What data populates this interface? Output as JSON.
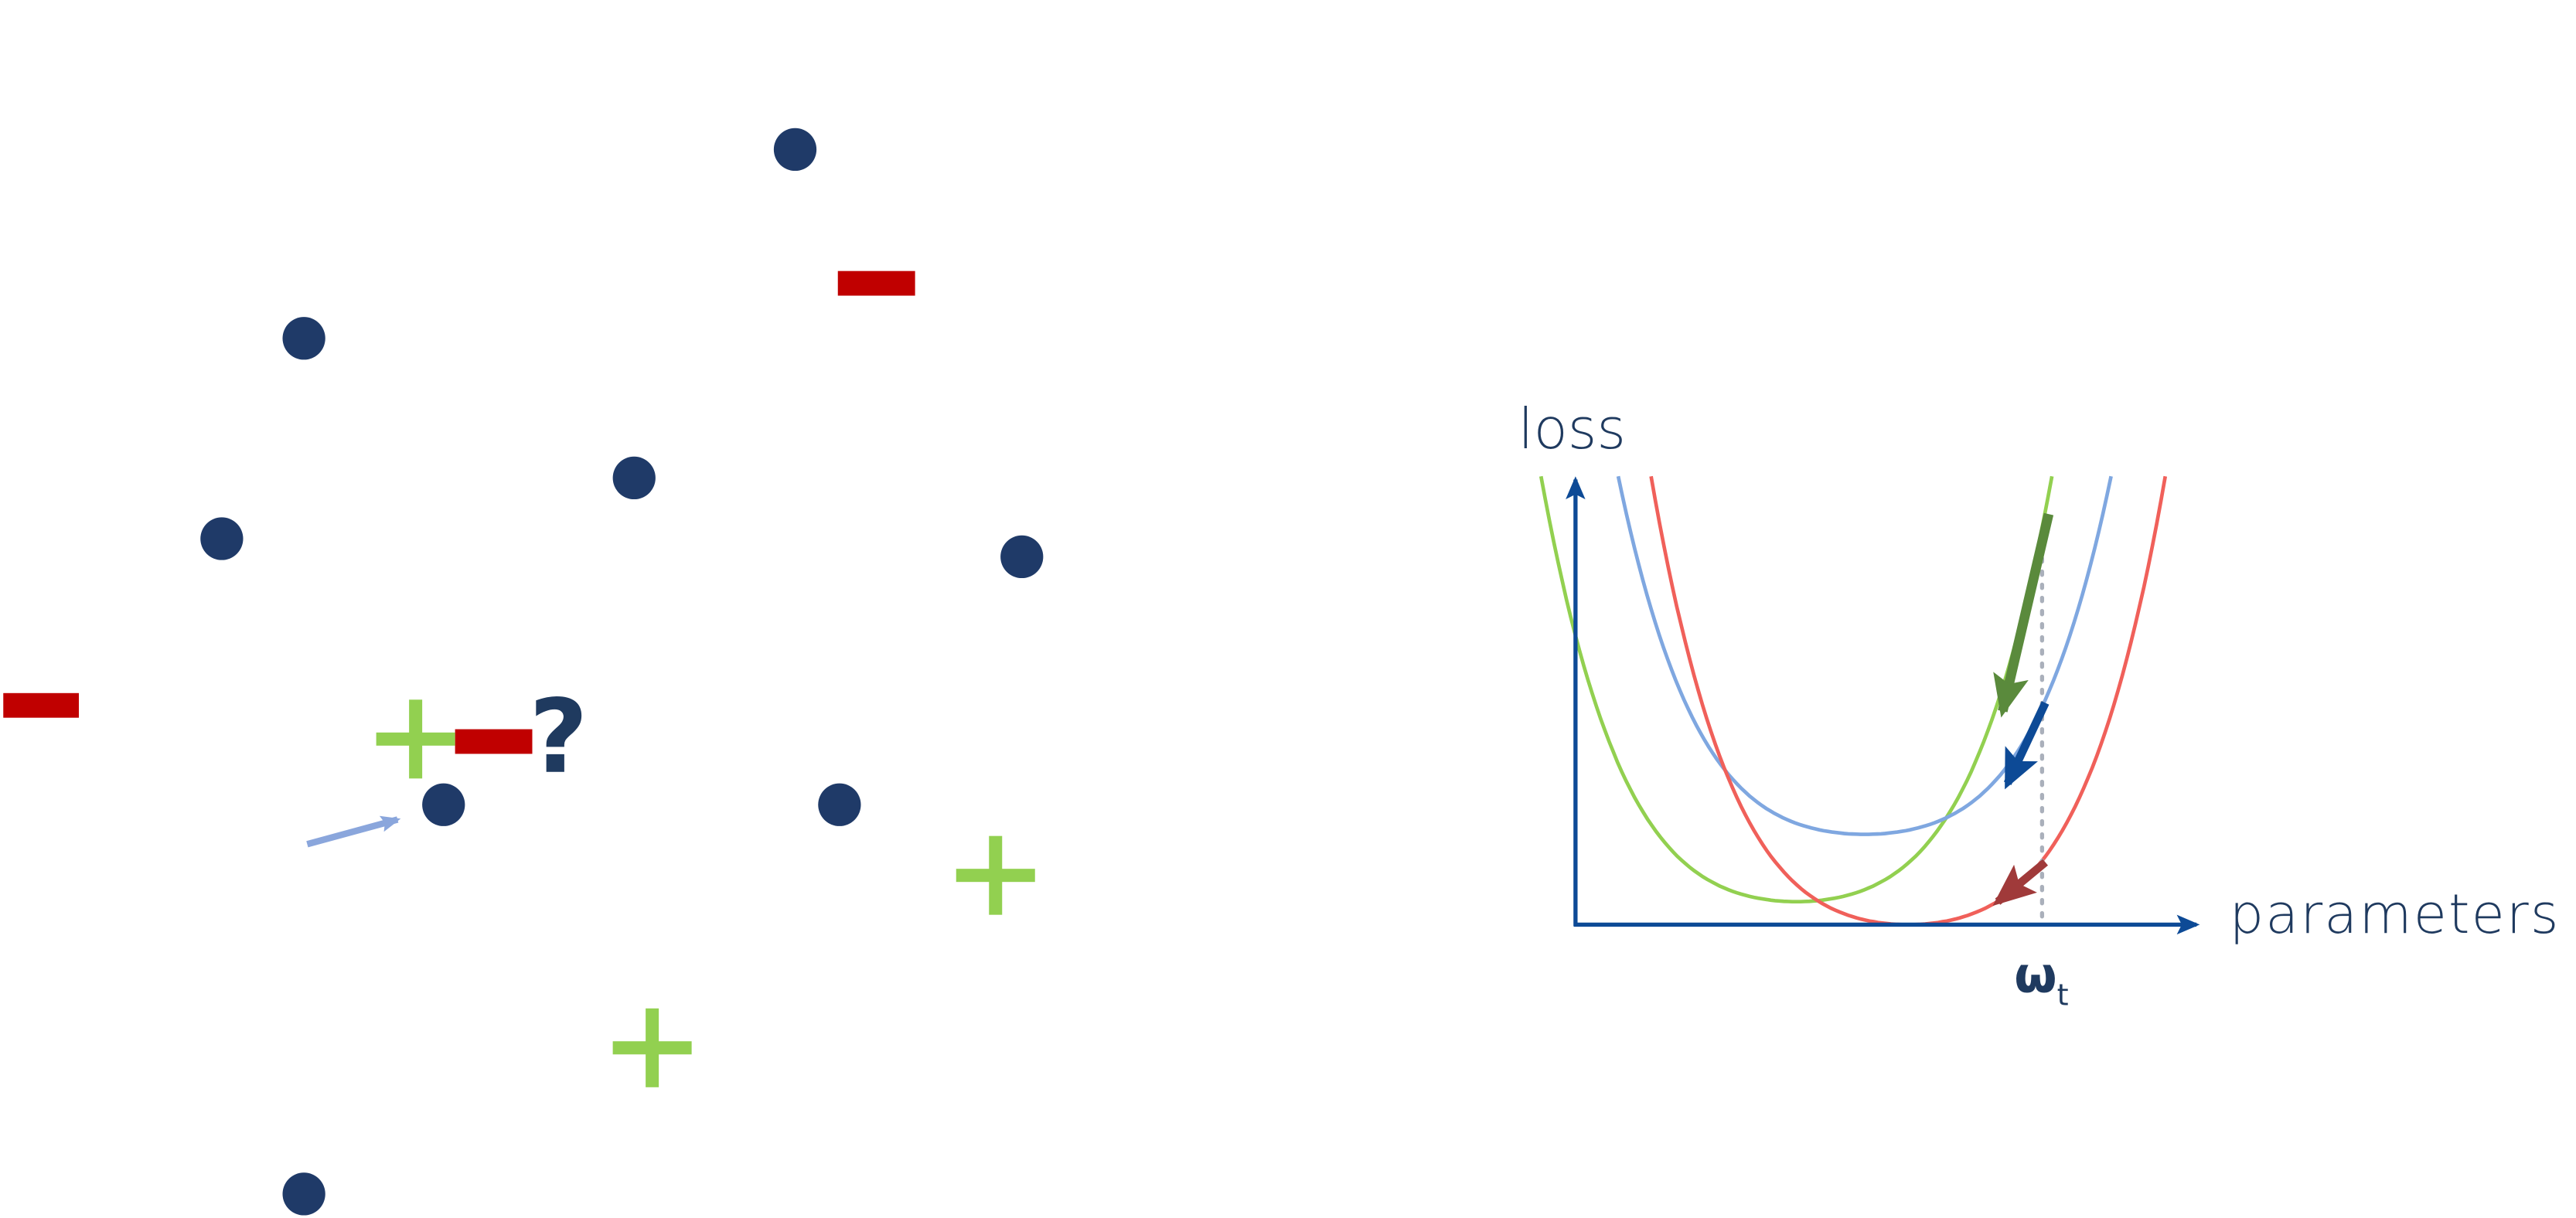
{
  "question_mark": "?",
  "axis_labels": {
    "y": "loss",
    "x": "parameters"
  },
  "marker": {
    "symbol": "ω",
    "subscript": "t"
  }
}
